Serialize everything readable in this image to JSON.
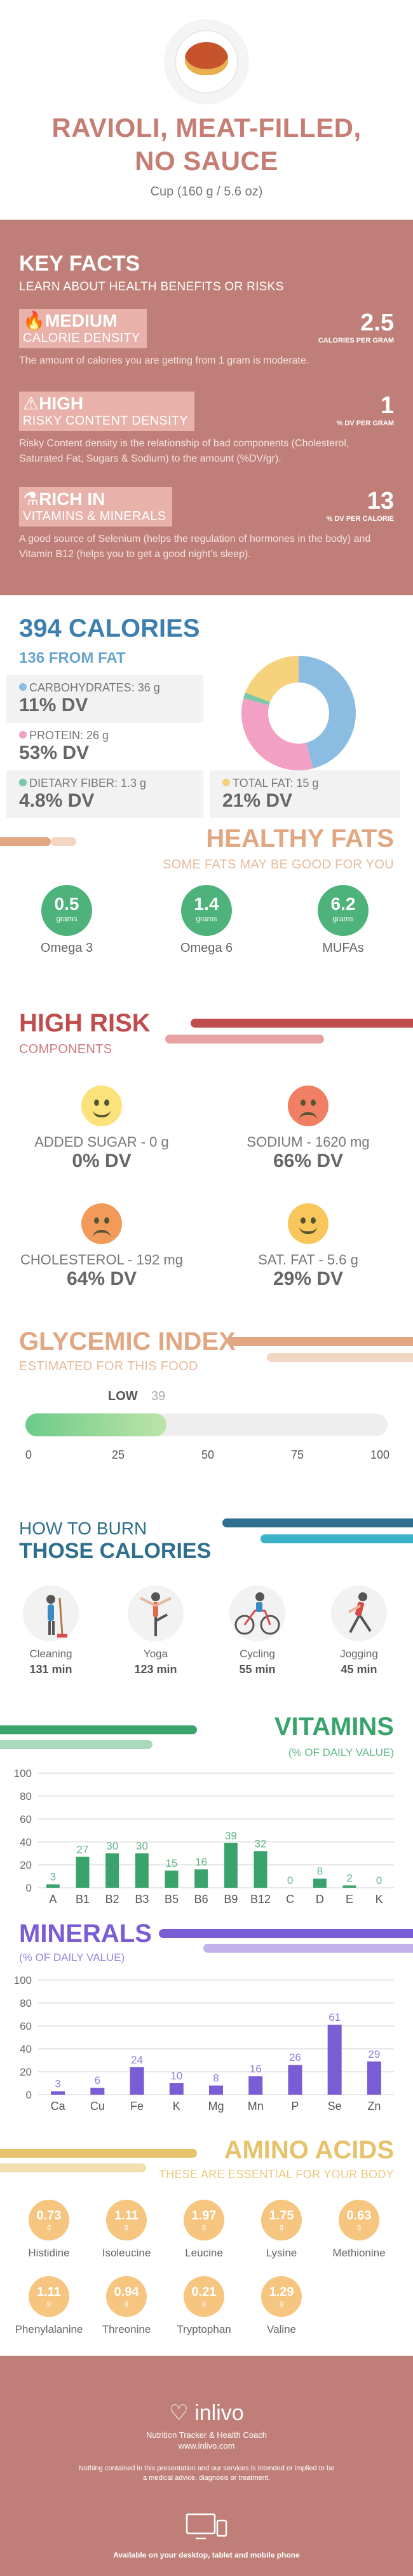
{
  "header": {
    "title_line1": "RAVIOLI, MEAT-FILLED,",
    "title_line2": "NO SAUCE",
    "serving": "Cup (160 g / 5.6 oz)"
  },
  "key_facts": {
    "title": "KEY FACTS",
    "subtitle": "LEARN ABOUT HEALTH BENEFITS OR RISKS",
    "items": [
      {
        "level": "MEDIUM",
        "category": "CALORIE DENSITY",
        "value": "2.5",
        "unit": "CALORIES PER GRAM",
        "description": "The amount of calories you are getting from 1 gram is moderate."
      },
      {
        "level": "HIGH",
        "category": "RISKY CONTENT DENSITY",
        "value": "1",
        "unit": "% DV PER GRAM",
        "description": "Risky Content density is the relationship of bad components (Cholesterol, Saturated Fat, Sugars & Sodium) to the amount (%DV/gr)."
      },
      {
        "level": "RICH IN",
        "category": "VITAMINS & MINERALS",
        "value": "13",
        "unit": "% DV PER CALORIE",
        "description": "A good source of Selenium (helps the regulation of hormones in the body) and Vitamin B12 (helps you to get a good night's sleep)."
      }
    ]
  },
  "calories": {
    "title": "394 CALORIES",
    "from_fat": "136 FROM FAT",
    "macros": {
      "carbs": {
        "label": "CARBOHYDRATES: 36 g",
        "dv": "11% DV",
        "color": "#8bbde3"
      },
      "protein": {
        "label": "PROTEIN: 26 g",
        "dv": "53% DV",
        "color": "#f2a1c4"
      },
      "fiber": {
        "label": "DIETARY FIBER: 1.3 g",
        "dv": "4.8% DV",
        "color": "#79c9a8"
      },
      "fat": {
        "label": "TOTAL FAT: 15 g",
        "dv": "21% DV",
        "color": "#f7d27c"
      }
    },
    "donut": [
      {
        "name": "carbs",
        "value": 36,
        "color": "#8bbde3"
      },
      {
        "name": "protein",
        "value": 26,
        "color": "#f2a1c4"
      },
      {
        "name": "fiber",
        "value": 1.3,
        "color": "#79c9a8"
      },
      {
        "name": "fat",
        "value": 15,
        "color": "#f7d27c"
      }
    ]
  },
  "healthy_fats": {
    "title": "HEALTHY FATS",
    "subtitle": "SOME FATS MAY BE GOOD FOR YOU",
    "unit": "grams",
    "items": [
      {
        "value": "0.5",
        "name": "Omega 3"
      },
      {
        "value": "1.4",
        "name": "Omega 6"
      },
      {
        "value": "6.2",
        "name": "MUFAs"
      }
    ]
  },
  "high_risk": {
    "title": "HIGH RISK",
    "subtitle": "COMPONENTS",
    "items": [
      {
        "label": "ADDED SUGAR - 0 g",
        "dv": "0% DV",
        "mood": "happy",
        "color": "#fbe27a"
      },
      {
        "label": "SODIUM - 1620 mg",
        "dv": "66% DV",
        "mood": "sad",
        "color": "#f07f63"
      },
      {
        "label": "CHOLESTEROL - 192 mg",
        "dv": "64% DV",
        "mood": "sad",
        "color": "#f29a5a"
      },
      {
        "label": "SAT. FAT - 5.6 g",
        "dv": "29% DV",
        "mood": "smile",
        "color": "#f8c65a"
      }
    ]
  },
  "glycemic": {
    "title": "GLYCEMIC INDEX",
    "subtitle": "ESTIMATED FOR THIS FOOD",
    "level": "LOW",
    "value": "39",
    "fraction": 0.39,
    "ticks": [
      "0",
      "25",
      "50",
      "75",
      "100"
    ]
  },
  "burn": {
    "title1": "HOW TO BURN",
    "title2": "THOSE CALORIES",
    "items": [
      {
        "name": "Cleaning",
        "minutes": "131 min",
        "icon": "cleaning-icon"
      },
      {
        "name": "Yoga",
        "minutes": "123 min",
        "icon": "yoga-icon"
      },
      {
        "name": "Cycling",
        "minutes": "55 min",
        "icon": "cycling-icon"
      },
      {
        "name": "Jogging",
        "minutes": "45 min",
        "icon": "jogging-icon"
      }
    ]
  },
  "vitamins": {
    "title": "VITAMINS",
    "subtitle": "(% OF DAILY VALUE)",
    "chart_data": {
      "type": "bar",
      "categories": [
        "A",
        "B1",
        "B2",
        "B3",
        "B5",
        "B6",
        "B9",
        "B12",
        "C",
        "D",
        "E",
        "K"
      ],
      "values": [
        3,
        27,
        30,
        30,
        15,
        16,
        39,
        32,
        0,
        8,
        2,
        0
      ],
      "yticks": [
        "100",
        "80",
        "60",
        "40",
        "20",
        "0"
      ],
      "ylim": [
        0,
        100
      ],
      "color": "#3aa36c"
    }
  },
  "minerals": {
    "title": "MINERALS",
    "subtitle": "(% OF DAILY VALUE)",
    "chart_data": {
      "type": "bar",
      "categories": [
        "Ca",
        "Cu",
        "Fe",
        "K",
        "Mg",
        "Mn",
        "P",
        "Se",
        "Zn"
      ],
      "values": [
        3,
        6,
        24,
        10,
        8,
        16,
        26,
        61,
        29
      ],
      "yticks": [
        "100",
        "80",
        "60",
        "40",
        "20",
        "0"
      ],
      "ylim": [
        0,
        100
      ],
      "color": "#7a5cd4"
    }
  },
  "amino_acids": {
    "title": "AMINO ACIDS",
    "subtitle": "THESE ARE ESSENTIAL FOR YOUR BODY",
    "unit": "g",
    "items": [
      {
        "value": "0.73",
        "name": "Histidine"
      },
      {
        "value": "1.11",
        "name": "Isoleucine"
      },
      {
        "value": "1.97",
        "name": "Leucine"
      },
      {
        "value": "1.75",
        "name": "Lysine"
      },
      {
        "value": "0.63",
        "name": "Methionine"
      },
      {
        "value": "1.11",
        "name": "Phenylalanine"
      },
      {
        "value": "0.94",
        "name": "Threonine"
      },
      {
        "value": "0.21",
        "name": "Tryptophan"
      },
      {
        "value": "1.29",
        "name": "Valine"
      }
    ]
  },
  "footer": {
    "brand": "inlivo",
    "tagline": "Nutrition Tracker & Health Coach",
    "url": "www.inlivo.com",
    "disclaimer": "Nothing contained in this presentation and our services is intended or implied to be a medical advice, diagnosis or treatment.",
    "available": "Available on your desktop, tablet and mobile phone"
  }
}
